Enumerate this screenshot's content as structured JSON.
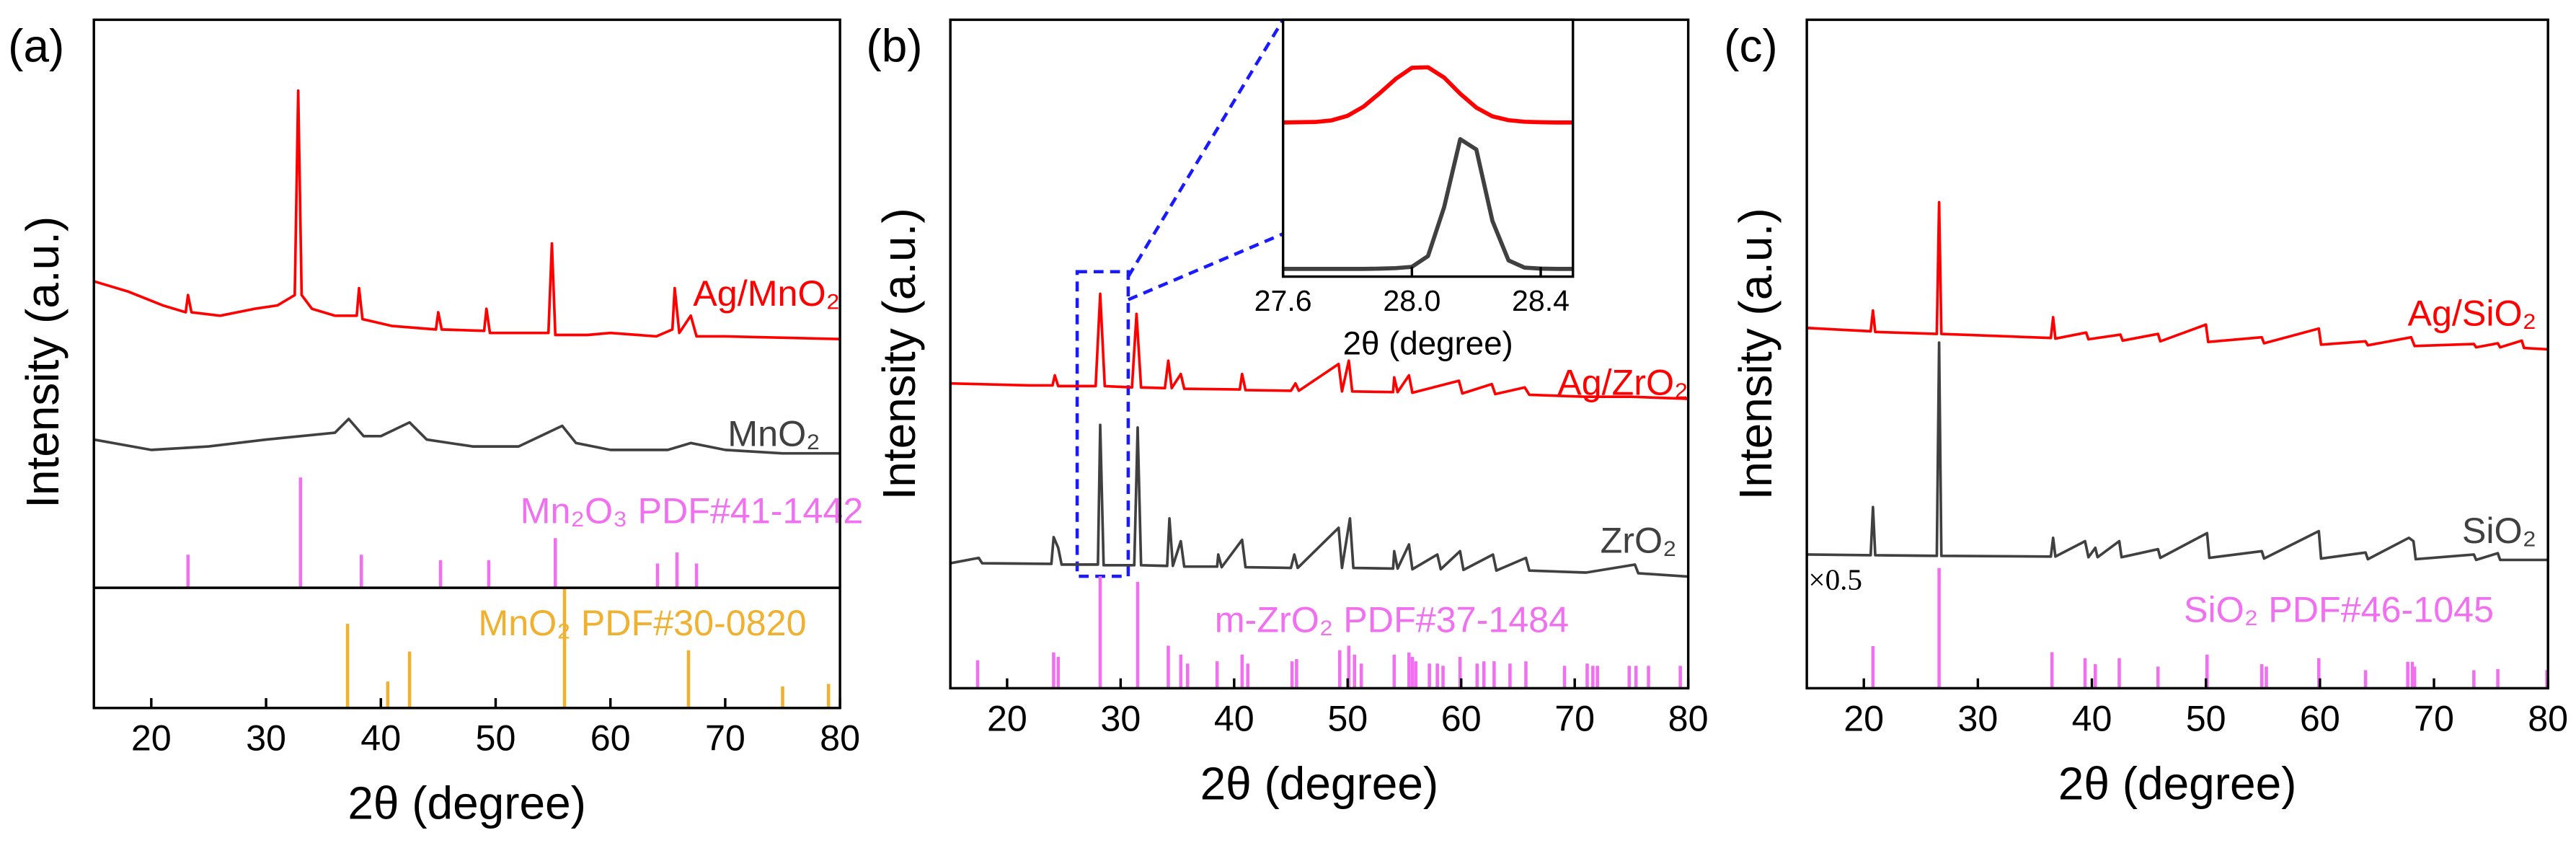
{
  "chart_data": [
    {
      "type": "line",
      "panel": "(a)",
      "xlabel": "2θ (degree)",
      "ylabel": "Intensity (a.u.)",
      "xlim": [
        15,
        80
      ],
      "xticks": [
        20,
        30,
        40,
        50,
        60,
        70,
        80
      ],
      "ylim": [
        0,
        100
      ],
      "series": [
        {
          "name": "Ag/MnO₂",
          "color": "#ff0000",
          "x": [
            15,
            18,
            21,
            23,
            23.2,
            23.5,
            26,
            29,
            31,
            32.5,
            32.8,
            33.1,
            34,
            36,
            37.9,
            38.1,
            38.4,
            41,
            44.8,
            45,
            45.3,
            49,
            49.2,
            49.5,
            52,
            54.6,
            54.9,
            55.2,
            58,
            60,
            64,
            65.4,
            65.6,
            66,
            67,
            67.5,
            70,
            75,
            80
          ],
          "values": [
            62,
            60.5,
            58.5,
            57.5,
            60,
            57.5,
            57,
            58,
            58.5,
            60,
            89.7,
            60,
            58,
            57,
            57,
            61,
            56.5,
            55.5,
            55,
            57.5,
            55,
            54.8,
            58,
            54.5,
            54.5,
            54.5,
            67.5,
            54.2,
            54.2,
            54.5,
            54,
            55,
            61,
            54.5,
            57,
            54,
            54,
            53.8,
            53.6
          ]
        },
        {
          "name": "MnO₂",
          "color": "#404040",
          "x": [
            15,
            20,
            25,
            30,
            33,
            36,
            37.2,
            38.5,
            40,
            42.5,
            44,
            48,
            52,
            55.8,
            57,
            60,
            65,
            67,
            70,
            75,
            80
          ],
          "values": [
            39,
            37.5,
            38,
            39,
            39.5,
            40,
            42,
            39.5,
            39.5,
            41.5,
            39,
            38,
            38,
            41,
            38.5,
            37.5,
            37.5,
            38.5,
            37.5,
            37,
            37
          ]
        }
      ],
      "references": [
        {
          "name": "Mn₂O₃ PDF#41-1442",
          "color": "#f070f0",
          "x": [
            23.2,
            33.0,
            38.3,
            45.2,
            49.4,
            55.2,
            64.1,
            65.8,
            67.5
          ],
          "values": [
            30,
            100,
            30,
            25,
            25,
            45,
            22,
            32,
            22
          ]
        },
        {
          "name": "MnO₂ PDF#30-0820",
          "color": "#f0b030",
          "x": [
            37.1,
            40.6,
            42.5,
            56.0,
            66.8,
            75,
            79
          ],
          "values": [
            70,
            22,
            47,
            100,
            48,
            18,
            20
          ]
        }
      ]
    },
    {
      "type": "line",
      "panel": "(b)",
      "xlabel": "2θ (degree)",
      "ylabel": "Intensity (a.u.)",
      "xlim": [
        15,
        80
      ],
      "xticks": [
        20,
        30,
        40,
        50,
        60,
        70,
        80
      ],
      "ylim": [
        0,
        100
      ],
      "series": [
        {
          "name": "Ag/ZrO₂",
          "color": "#ff0000",
          "x": [
            15,
            22,
            24,
            24.2,
            24.5,
            27.8,
            28.2,
            28.6,
            31,
            31.4,
            31.8,
            33.9,
            34.2,
            34.5,
            35.3,
            35.6,
            40.5,
            40.7,
            41,
            45,
            45.4,
            45.7,
            49.2,
            49.5,
            50.1,
            50.4,
            54,
            54.1,
            54.4,
            55.4,
            55.7,
            59.8,
            60.1,
            62.7,
            63,
            65.6,
            66,
            71,
            75,
            80
          ],
          "values": [
            45.6,
            45.3,
            45.3,
            46.8,
            45.2,
            45.2,
            59,
            45.2,
            45,
            56,
            45,
            44.9,
            49,
            44.9,
            47,
            44.8,
            44.7,
            47,
            44.6,
            44.5,
            45.6,
            44.5,
            48.5,
            44.4,
            49,
            44.4,
            44.3,
            46.5,
            44.3,
            46.8,
            44.2,
            46,
            44.1,
            45.5,
            44,
            45,
            43.9,
            43.6,
            43.6,
            43.3
          ]
        },
        {
          "name": "ZrO₂",
          "color": "#404040",
          "x": [
            15,
            17.5,
            17.8,
            23.9,
            24.1,
            24.5,
            24.8,
            28,
            28.2,
            28.5,
            31.2,
            31.5,
            31.8,
            34.1,
            34.3,
            34.6,
            35.3,
            35.6,
            38.5,
            38.6,
            38.9,
            40.7,
            41,
            45,
            45.3,
            45.6,
            49.2,
            49.5,
            50.2,
            50.5,
            54,
            54.1,
            54.4,
            55.4,
            55.7,
            57.9,
            58.2,
            59.9,
            60.2,
            62.8,
            63.1,
            65.7,
            66,
            71,
            75.3,
            75.6,
            80
          ],
          "values": [
            18.7,
            19.5,
            18.7,
            18.6,
            22.6,
            21,
            18.5,
            18.5,
            39.4,
            18.4,
            18.4,
            39,
            18.4,
            18.3,
            25.4,
            18.3,
            22,
            18.2,
            18.2,
            20,
            18.1,
            22.2,
            18.1,
            18,
            20,
            18,
            24,
            18,
            25.4,
            18,
            17.9,
            20.5,
            17.9,
            21.5,
            17.8,
            20,
            17.8,
            20.5,
            17.7,
            20,
            17.6,
            19.5,
            17.6,
            17.3,
            18.5,
            17.2,
            16.7
          ]
        }
      ],
      "references": [
        {
          "name": "m-ZrO₂ PDF#37-1484",
          "color": "#f070f0",
          "x": [
            17.4,
            24.1,
            24.5,
            28.2,
            31.5,
            34.2,
            35.3,
            35.9,
            38.5,
            40.7,
            41.2,
            45.1,
            45.5,
            49.3,
            50.1,
            50.6,
            51.2,
            54.1,
            55.4,
            55.7,
            56,
            57.2,
            57.9,
            58.4,
            59.9,
            61.4,
            62,
            62.9,
            64.3,
            65.7,
            69.1,
            71.1,
            71.6,
            72,
            74.8,
            75.4,
            76.5,
            79.3
          ],
          "values": [
            25,
            32,
            28,
            100,
            95,
            38,
            30,
            22,
            24,
            30,
            22,
            24,
            26,
            34,
            38,
            30,
            22,
            30,
            32,
            28,
            24,
            22,
            22,
            20,
            28,
            22,
            24,
            24,
            22,
            24,
            20,
            22,
            20,
            20,
            20,
            20,
            20,
            20
          ]
        }
      ]
    },
    {
      "type": "line",
      "panel": "(c)",
      "xlabel": "2θ (degree)",
      "ylabel": "Intensity (a.u.)",
      "xlim": [
        15,
        80
      ],
      "xticks": [
        20,
        30,
        40,
        50,
        60,
        70,
        80
      ],
      "ylim": [
        0,
        100
      ],
      "annotation": "×0.5",
      "series": [
        {
          "name": "Ag/SiO₂",
          "color": "#ff0000",
          "x": [
            15,
            20.6,
            20.8,
            21,
            26.4,
            26.6,
            26.8,
            36.4,
            36.6,
            36.8,
            39.5,
            39.7,
            42.5,
            42.7,
            45.8,
            46,
            50,
            50.2,
            54.9,
            55.1,
            59.9,
            60.1,
            64,
            64.2,
            68,
            68.3,
            73.5,
            73.7,
            75.6,
            75.8,
            77.7,
            77.9,
            80
          ],
          "values": [
            53.9,
            53.4,
            56.5,
            53.3,
            53,
            72.7,
            53,
            52.4,
            55.5,
            52.3,
            53.2,
            52.2,
            52.9,
            52,
            53,
            51.9,
            54.4,
            51.8,
            52.5,
            51.6,
            53.8,
            51.4,
            51.9,
            51.3,
            52.5,
            51.2,
            51.5,
            51,
            51.6,
            51,
            52,
            50.9,
            50.7
          ]
        },
        {
          "name": "SiO₂",
          "color": "#404040",
          "x": [
            15,
            20.6,
            20.8,
            21,
            26.4,
            26.6,
            26.8,
            36.4,
            36.6,
            36.8,
            39.4,
            39.7,
            40.3,
            40.5,
            42.4,
            42.6,
            45.8,
            46,
            50.1,
            50.3,
            54.9,
            55.1,
            59.9,
            60.1,
            64,
            64.2,
            67.8,
            68.2,
            68.4,
            73.5,
            73.7,
            75.6,
            75.8,
            80
          ],
          "values": [
            20,
            19.9,
            27.1,
            19.9,
            19.8,
            51.7,
            19.8,
            19.7,
            22.5,
            19.7,
            22,
            19.6,
            21,
            19.6,
            22,
            19.6,
            20.8,
            19.5,
            23.2,
            19.5,
            20.5,
            19.4,
            23.5,
            19.4,
            20.3,
            19.3,
            22.5,
            22,
            19.3,
            20,
            19.2,
            20.2,
            19.2,
            19.2
          ]
        }
      ],
      "references": [
        {
          "name": "SiO₂ PDF#46-1045",
          "color": "#f070f0",
          "x": [
            20.8,
            26.6,
            36.5,
            39.4,
            40.3,
            42.4,
            45.8,
            50.1,
            54.9,
            55.3,
            59.9,
            64,
            67.7,
            68.1,
            68.3,
            73.5,
            75.6,
            79.9
          ],
          "values": [
            35,
            100,
            30,
            25,
            20,
            25,
            18,
            28,
            20,
            18,
            25,
            15,
            22,
            22,
            18,
            15,
            16,
            15
          ]
        }
      ]
    },
    {
      "type": "line",
      "xlabel": "2θ (degree)",
      "xlim": [
        27.6,
        28.5
      ],
      "xticks": [
        27.6,
        {
          "value": 28,
          "label": "28.0"
        },
        28.4
      ],
      "ylim": [
        0,
        100
      ],
      "series": [
        {
          "color": "#ff0000",
          "x": [
            27.6,
            27.65,
            27.7,
            27.75,
            27.8,
            27.85,
            27.9,
            27.95,
            28,
            28.05,
            28.1,
            28.15,
            28.2,
            28.25,
            28.3,
            28.35,
            28.4,
            28.45,
            28.5
          ],
          "values": [
            60,
            60.1,
            60.2,
            60.8,
            62.6,
            66.2,
            71.4,
            77,
            81.3,
            81.5,
            77.5,
            71.2,
            65.8,
            62.4,
            60.9,
            60.3,
            60.1,
            60,
            60
          ]
        },
        {
          "color": "#404040",
          "x": [
            27.6,
            27.65,
            27.7,
            27.75,
            27.8,
            27.85,
            27.9,
            27.95,
            28,
            28.05,
            28.1,
            28.15,
            28.2,
            28.25,
            28.3,
            28.35,
            28.4,
            28.45,
            28.5
          ],
          "values": [
            3,
            3,
            3,
            3,
            3,
            3,
            3.1,
            3.3,
            3.8,
            8,
            27,
            53.5,
            49.5,
            21.7,
            6.3,
            3.5,
            3.1,
            3,
            3
          ]
        }
      ]
    }
  ]
}
